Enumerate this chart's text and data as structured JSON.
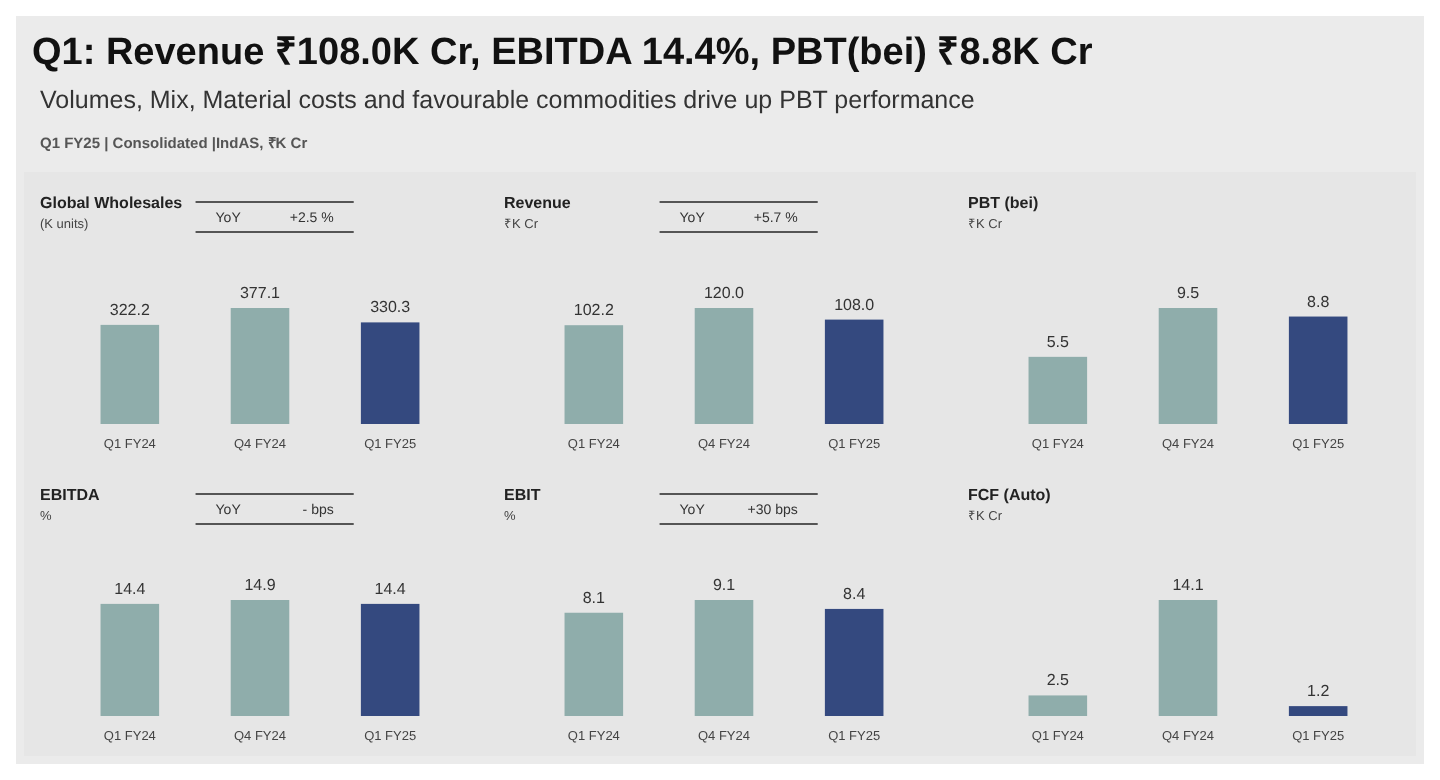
{
  "chart_data": [
    {
      "type": "other",
      "title": "Q1: Revenue ₹108.0K Cr, EBITDA 14.4%, PBT(bei) ₹8.8K Cr",
      "subtitle": "Volumes, Mix, Material costs and favourable commodities drive up PBT performance",
      "annotations": [
        "Q1 FY25 | Consolidated |IndAS, ₹K Cr"
      ]
    },
    {
      "type": "bar",
      "title": "Global Wholesales",
      "subtitle": "(K units)",
      "categories": [
        "Q1 FY24",
        "Q4 FY24",
        "Q1 FY25"
      ],
      "values": [
        322.2,
        377.1,
        330.3
      ],
      "colors": [
        "#8fadab",
        "#8fadab",
        "#34497f"
      ],
      "value_labels": [
        "322.2",
        "377.1",
        "330.3"
      ],
      "annotations": [
        "YoY",
        "+2.5 %"
      ]
    },
    {
      "type": "bar",
      "title": "Revenue",
      "subtitle": "₹K Cr",
      "categories": [
        "Q1 FY24",
        "Q4 FY24",
        "Q1 FY25"
      ],
      "values": [
        102.2,
        120.0,
        108.0
      ],
      "colors": [
        "#8fadab",
        "#8fadab",
        "#34497f"
      ],
      "value_labels": [
        "102.2",
        "120.0",
        "108.0"
      ],
      "annotations": [
        "YoY",
        "+5.7 %"
      ]
    },
    {
      "type": "bar",
      "title": "PBT (bei)",
      "subtitle": "₹K Cr",
      "categories": [
        "Q1 FY24",
        "Q4 FY24",
        "Q1 FY25"
      ],
      "values": [
        5.5,
        9.5,
        8.8
      ],
      "colors": [
        "#8fadab",
        "#8fadab",
        "#34497f"
      ],
      "value_labels": [
        "5.5",
        "9.5",
        "8.8"
      ]
    },
    {
      "type": "bar",
      "title": "EBITDA",
      "subtitle": "%",
      "categories": [
        "Q1 FY24",
        "Q4 FY24",
        "Q1 FY25"
      ],
      "values": [
        14.4,
        14.9,
        14.4
      ],
      "colors": [
        "#8fadab",
        "#8fadab",
        "#34497f"
      ],
      "value_labels": [
        "14.4",
        "14.9",
        "14.4"
      ],
      "annotations": [
        "YoY",
        "- bps"
      ]
    },
    {
      "type": "bar",
      "title": "EBIT",
      "subtitle": "%",
      "categories": [
        "Q1 FY24",
        "Q4 FY24",
        "Q1 FY25"
      ],
      "values": [
        8.1,
        9.1,
        8.4
      ],
      "colors": [
        "#8fadab",
        "#8fadab",
        "#34497f"
      ],
      "value_labels": [
        "8.1",
        "9.1",
        "8.4"
      ],
      "annotations": [
        "YoY",
        "+30 bps"
      ]
    },
    {
      "type": "bar",
      "title": "FCF (Auto)",
      "subtitle": "₹K Cr",
      "categories": [
        "Q1 FY24",
        "Q4 FY24",
        "Q1 FY25"
      ],
      "values": [
        2.5,
        14.1,
        1.2
      ],
      "colors": [
        "#8fadab",
        "#8fadab",
        "#34497f"
      ],
      "value_labels": [
        "2.5",
        "14.1",
        "1.2"
      ]
    }
  ]
}
